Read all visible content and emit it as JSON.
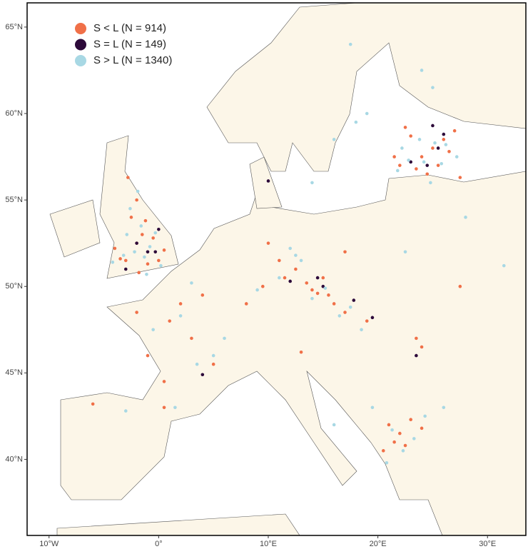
{
  "chart_data": {
    "type": "scatter",
    "xlim": [
      -12,
      33.5
    ],
    "ylim": [
      35.6,
      66.4
    ],
    "xticks": [
      {
        "value": -10,
        "label": "10°W"
      },
      {
        "value": 0,
        "label": "0°"
      },
      {
        "value": 10,
        "label": "10°E"
      },
      {
        "value": 20,
        "label": "20°E"
      },
      {
        "value": 30,
        "label": "30°E"
      }
    ],
    "yticks": [
      {
        "value": 40,
        "label": "40°N"
      },
      {
        "value": 45,
        "label": "45°N"
      },
      {
        "value": 50,
        "label": "50°N"
      },
      {
        "value": 55,
        "label": "55°N"
      },
      {
        "value": 60,
        "label": "60°N"
      },
      {
        "value": 65,
        "label": "65°N"
      }
    ],
    "legend": "top-left",
    "series": [
      {
        "name": "S < L (N = 914)",
        "color": "#f07048",
        "x": [
          -3,
          -2,
          -1.5,
          -2.5,
          -1,
          0,
          -3.5,
          -2,
          -4,
          -1.2,
          -0.5,
          -2.8,
          -1.8,
          0.5,
          22,
          23.5,
          24,
          25,
          26,
          27,
          22.5,
          24.5,
          25.5,
          26.5,
          21.5,
          23,
          27.5,
          13.5,
          14,
          15,
          15.5,
          16,
          17,
          14.5,
          11,
          12.5,
          11.5,
          9.5,
          10,
          8,
          1,
          2,
          3,
          -1,
          5,
          0.5,
          -2,
          4,
          21,
          22,
          23,
          22.5,
          21.5,
          24,
          20.5,
          -6,
          0.5,
          24,
          27.5,
          19,
          13,
          23.5,
          17
        ],
        "y": [
          51.5,
          52.5,
          53,
          54,
          51.3,
          51.5,
          51.6,
          55,
          52.2,
          53.8,
          52.8,
          56.3,
          50.8,
          52.1,
          57,
          56.8,
          57.5,
          58,
          58.5,
          59,
          59.2,
          56.5,
          57,
          57.8,
          57.5,
          58.7,
          56.3,
          50.2,
          49.8,
          50.5,
          49.5,
          49,
          48.5,
          49.6,
          51.5,
          51,
          50.5,
          50,
          52.5,
          49,
          48,
          49,
          47,
          46,
          45.5,
          44.5,
          48.5,
          49.5,
          42,
          41.5,
          42.3,
          40.8,
          41,
          41.8,
          40.5,
          43.2,
          43,
          46.5,
          50,
          48,
          46.2,
          47,
          52
        ]
      },
      {
        "name": "S = L (N = 149)",
        "color": "#2d0a3a",
        "x": [
          -2,
          -1,
          -3,
          0,
          -0.3,
          24.5,
          25.5,
          23,
          26,
          14.5,
          15,
          17.8,
          19.5,
          4,
          23.5,
          12,
          25,
          10
        ],
        "y": [
          52.5,
          52,
          51,
          53.3,
          52,
          57,
          58,
          57.2,
          58.8,
          50.5,
          50,
          49.2,
          48.2,
          44.9,
          46,
          50.3,
          59.3,
          56.1
        ]
      },
      {
        "name": "S > L (N = 1340)",
        "color": "#a8d8e4",
        "x": [
          -2.2,
          -1.6,
          -0.8,
          -3.2,
          -2.6,
          -1.3,
          0.2,
          -2.9,
          -1.9,
          -0.3,
          -4.2,
          -1.1,
          21.8,
          22.8,
          24.2,
          25.2,
          26.2,
          27.2,
          23.8,
          25.8,
          22.2,
          24.8,
          12.5,
          13,
          14,
          15.2,
          16.5,
          17.5,
          11,
          9,
          12,
          18.5,
          2,
          3.5,
          5,
          1.5,
          6,
          -0.5,
          -3,
          3,
          21.3,
          22.3,
          23.3,
          20.8,
          24.3,
          19.5,
          18,
          16,
          14,
          24,
          25,
          19,
          17.5,
          31.5,
          22.5,
          16,
          28,
          26
        ],
        "y": [
          52,
          53.5,
          52.3,
          51.8,
          54.5,
          51.7,
          51.2,
          53,
          55.5,
          53.1,
          51.4,
          50.7,
          56.7,
          57.3,
          57.2,
          58.3,
          58.2,
          57.5,
          58.5,
          57.1,
          58,
          56,
          51.8,
          51.5,
          49.3,
          49.9,
          48.3,
          48.8,
          50.5,
          49.8,
          52.2,
          47.5,
          48.3,
          45.5,
          46,
          43,
          47,
          47.5,
          42.8,
          50.2,
          41.7,
          40.5,
          41.2,
          39.8,
          42.5,
          43,
          59.5,
          58.5,
          56,
          62.5,
          61.5,
          60,
          64,
          51.2,
          52,
          42,
          54,
          43
        ]
      }
    ]
  }
}
